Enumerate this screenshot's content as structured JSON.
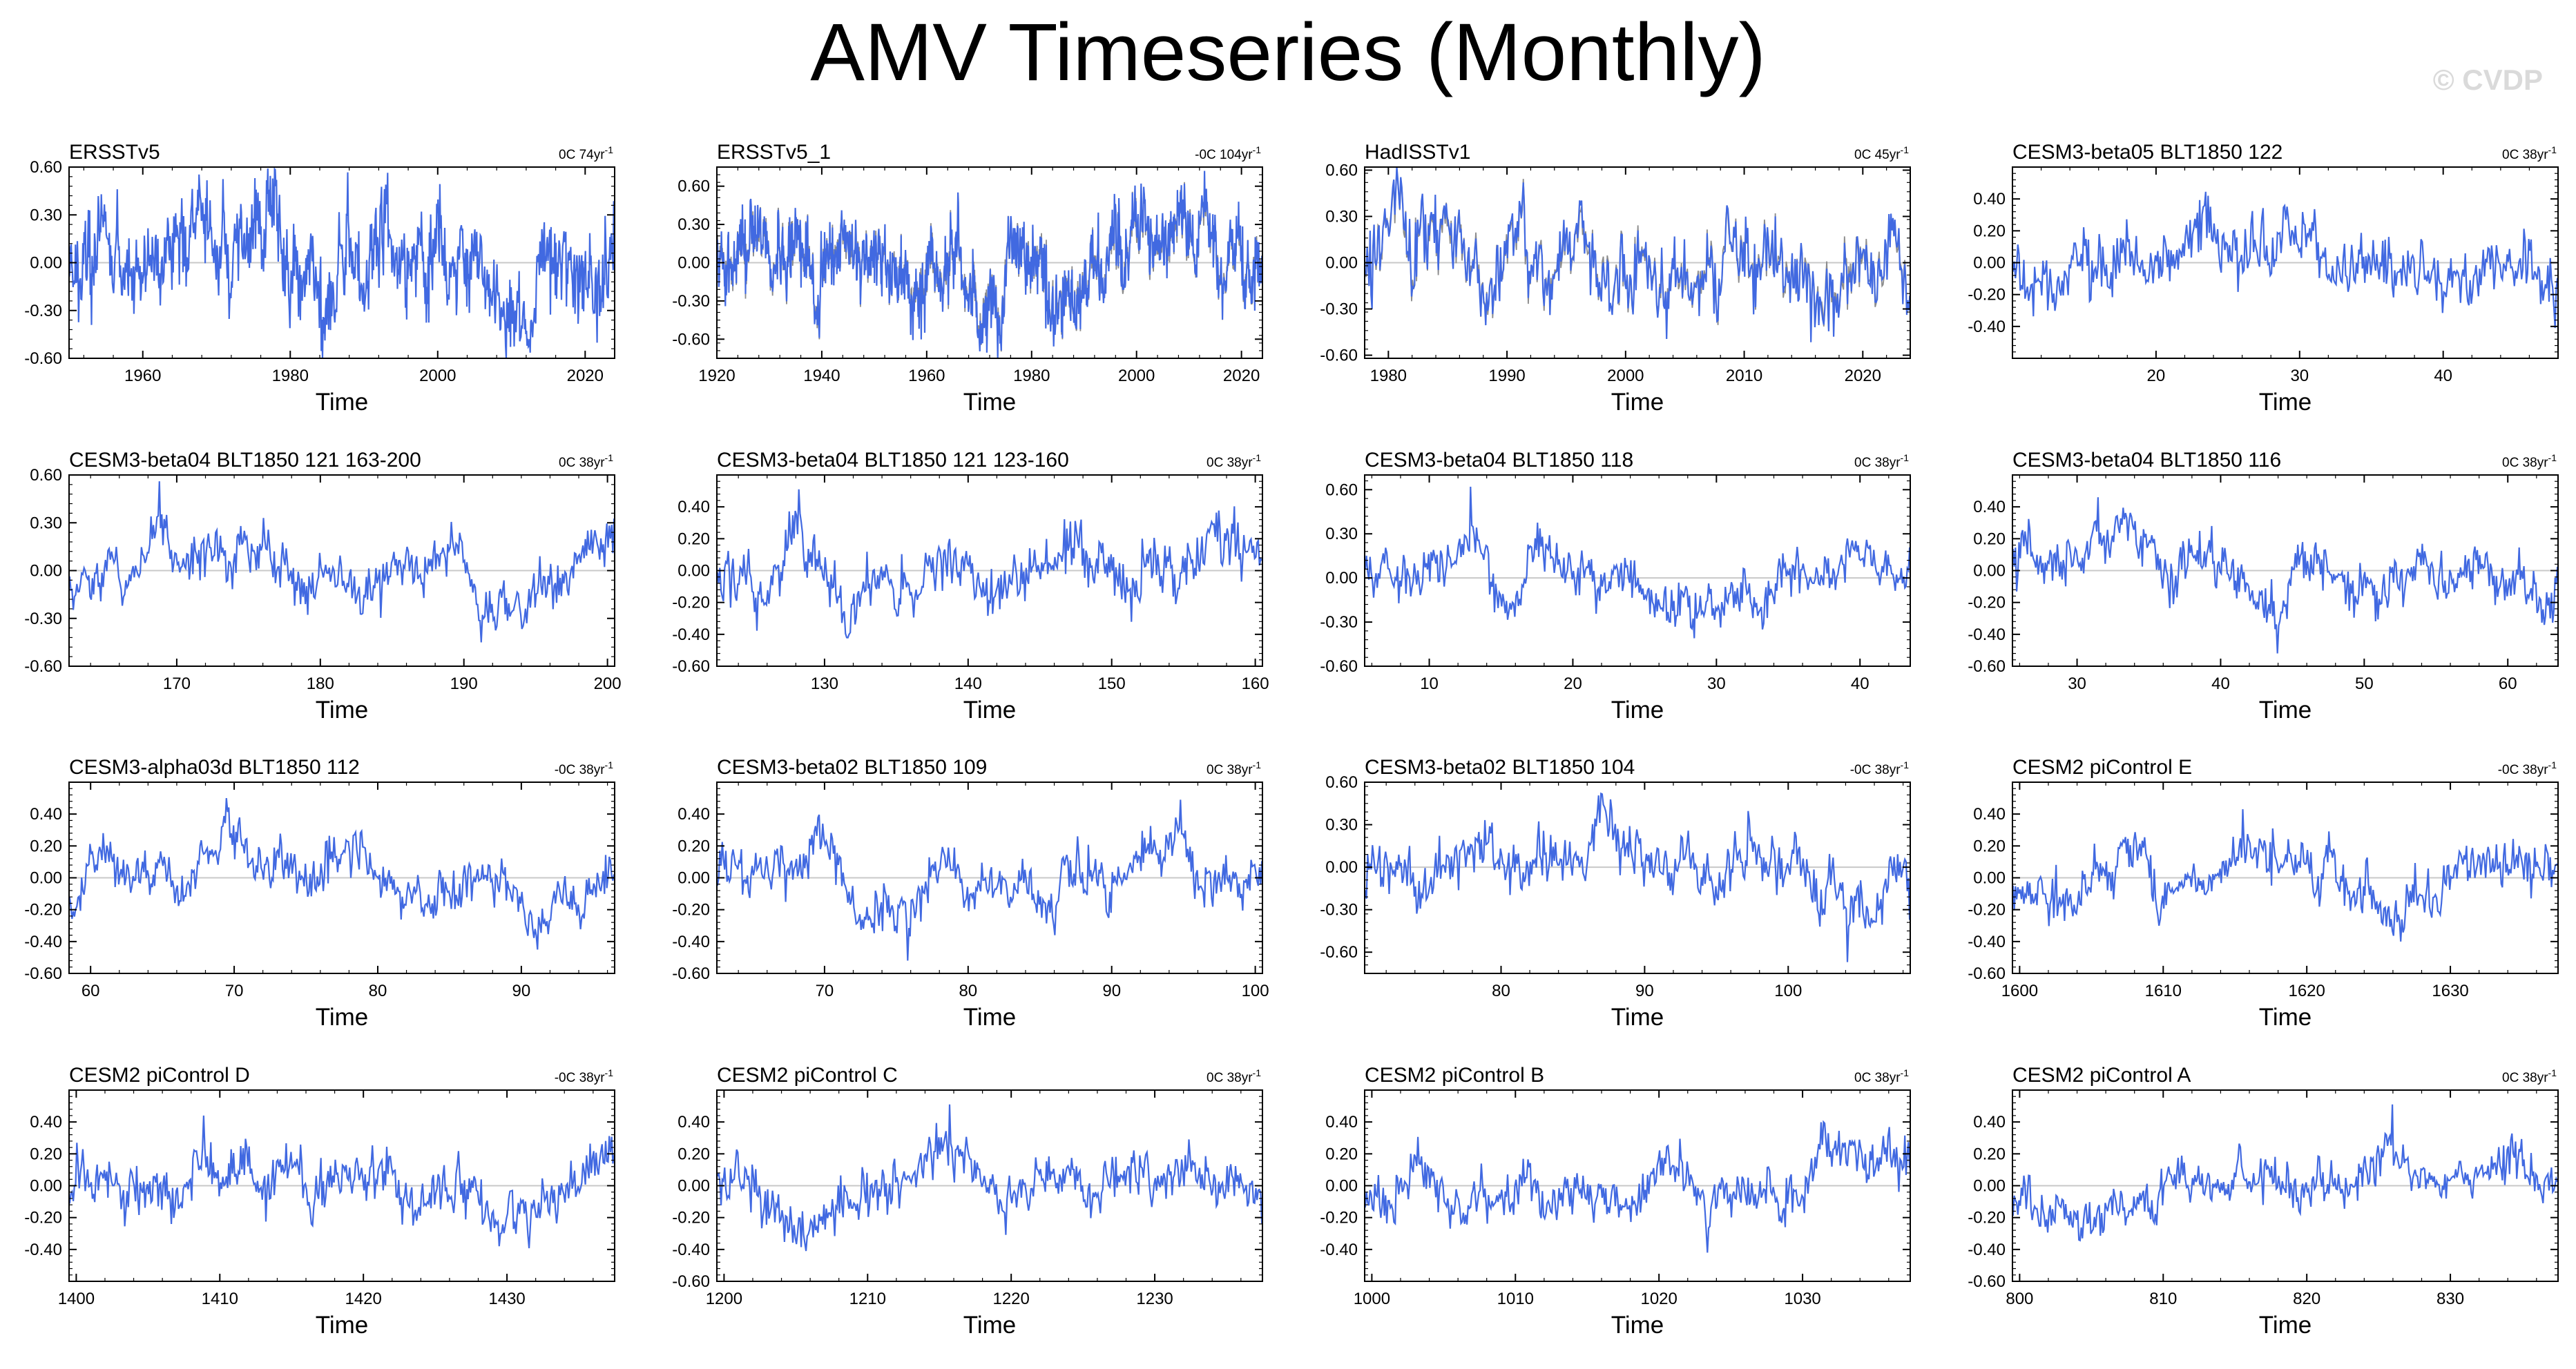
{
  "title": "AMV Timeseries (Monthly)",
  "watermark": "© CVDP",
  "colors": {
    "series": "#4169e1",
    "obs_overlay": "#8c8c8c",
    "zero_line": "#c8c8c8",
    "axis": "#000000"
  },
  "chart_data": [
    {
      "type": "line",
      "title": "ERSSTv5",
      "trend": "0C 74yr",
      "trend_sup": "-1",
      "x_range": [
        1950,
        2024
      ],
      "y_range": [
        -0.6,
        0.6
      ],
      "xticks": [
        1960,
        1980,
        2000,
        2020
      ],
      "yticks": [
        -0.6,
        -0.3,
        0,
        0.3,
        0.6
      ],
      "ytick_labels": [
        "-0.60",
        "-0.30",
        "0.00",
        "0.30",
        "0.60"
      ],
      "xlabel": "Time",
      "amplitude": 0.22,
      "extremes": [
        0.52,
        -0.52
      ],
      "seed": 11
    },
    {
      "type": "line",
      "title": "ERSSTv5_1",
      "trend": "-0C 104yr",
      "trend_sup": "-1",
      "x_range": [
        1920,
        2024
      ],
      "y_range": [
        -0.75,
        0.75
      ],
      "xticks": [
        1920,
        1940,
        1960,
        1980,
        2000,
        2020
      ],
      "yticks": [
        -0.6,
        -0.3,
        0,
        0.3,
        0.6
      ],
      "ytick_labels": [
        "-0.60",
        "-0.30",
        "0.00",
        "0.30",
        "0.60"
      ],
      "xlabel": "Time",
      "amplitude": 0.25,
      "extremes": [
        0.72,
        -0.62
      ],
      "seed": 23,
      "overlay": true
    },
    {
      "type": "line",
      "title": "HadISSTv1",
      "trend": "0C 45yr",
      "trend_sup": "-1",
      "x_range": [
        1978,
        2024
      ],
      "y_range": [
        -0.62,
        0.62
      ],
      "xticks": [
        1980,
        1990,
        2000,
        2010,
        2020
      ],
      "yticks": [
        -0.6,
        -0.3,
        0,
        0.3,
        0.6
      ],
      "ytick_labels": [
        "-0.60",
        "-0.30",
        "0.00",
        "0.30",
        "0.60"
      ],
      "xlabel": "Time",
      "amplitude": 0.2,
      "extremes": [
        0.7,
        -0.48
      ],
      "seed": 37,
      "overlay": true
    },
    {
      "type": "line",
      "title": "CESM3-beta05 BLT1850 122",
      "trend": "0C 38yr",
      "trend_sup": "-1",
      "x_range": [
        10,
        48
      ],
      "y_range": [
        -0.6,
        0.6
      ],
      "xticks": [
        20,
        30,
        40
      ],
      "yticks": [
        -0.4,
        -0.2,
        0,
        0.2,
        0.4
      ],
      "ytick_labels": [
        "-0.40",
        "-0.20",
        "0.00",
        "0.20",
        "0.40"
      ],
      "xlabel": "Time",
      "amplitude": 0.14,
      "extremes": [
        0.42,
        -0.41
      ],
      "seed": 41
    },
    {
      "type": "line",
      "title": "CESM3-beta04 BLT1850 121 163-200",
      "trend": "0C 38yr",
      "trend_sup": "-1",
      "x_range": [
        162.5,
        200.5
      ],
      "y_range": [
        -0.6,
        0.6
      ],
      "xticks": [
        170,
        180,
        190,
        200
      ],
      "yticks": [
        -0.6,
        -0.3,
        0,
        0.3,
        0.6
      ],
      "ytick_labels": [
        "-0.60",
        "-0.30",
        "0.00",
        "0.30",
        "0.60"
      ],
      "xlabel": "Time",
      "amplitude": 0.15,
      "extremes": [
        0.56,
        -0.45
      ],
      "seed": 53
    },
    {
      "type": "line",
      "title": "CESM3-beta04 BLT1850 121 123-160",
      "trend": "0C 38yr",
      "trend_sup": "-1",
      "x_range": [
        122.5,
        160.5
      ],
      "y_range": [
        -0.6,
        0.6
      ],
      "xticks": [
        130,
        140,
        150,
        160
      ],
      "yticks": [
        -0.6,
        -0.4,
        -0.2,
        0,
        0.2,
        0.4
      ],
      "ytick_labels": [
        "-0.60",
        "-0.40",
        "-0.20",
        "0.00",
        "0.20",
        "0.40"
      ],
      "xlabel": "Time",
      "amplitude": 0.15,
      "extremes": [
        0.51,
        -0.42
      ],
      "seed": 67
    },
    {
      "type": "line",
      "title": "CESM3-beta04 BLT1850 118",
      "trend": "0C 38yr",
      "trend_sup": "-1",
      "x_range": [
        5.5,
        43.5
      ],
      "y_range": [
        -0.6,
        0.7
      ],
      "xticks": [
        10,
        20,
        30,
        40
      ],
      "yticks": [
        -0.6,
        -0.3,
        0,
        0.3,
        0.6
      ],
      "ytick_labels": [
        "-0.60",
        "-0.30",
        "0.00",
        "0.30",
        "0.60"
      ],
      "xlabel": "Time",
      "amplitude": 0.15,
      "extremes": [
        0.62,
        -0.41
      ],
      "seed": 71
    },
    {
      "type": "line",
      "title": "CESM3-beta04 BLT1850 116",
      "trend": "0C 38yr",
      "trend_sup": "-1",
      "x_range": [
        25.5,
        63.5
      ],
      "y_range": [
        -0.6,
        0.6
      ],
      "xticks": [
        30,
        40,
        50,
        60
      ],
      "yticks": [
        -0.6,
        -0.4,
        -0.2,
        0,
        0.2,
        0.4
      ],
      "ytick_labels": [
        "-0.60",
        "-0.40",
        "-0.20",
        "0.00",
        "0.20",
        "0.40"
      ],
      "xlabel": "Time",
      "amplitude": 0.15,
      "extremes": [
        0.46,
        -0.52
      ],
      "seed": 83
    },
    {
      "type": "line",
      "title": "CESM3-alpha03d BLT1850 112",
      "trend": "-0C 38yr",
      "trend_sup": "-1",
      "x_range": [
        58.5,
        96.5
      ],
      "y_range": [
        -0.6,
        0.6
      ],
      "xticks": [
        60,
        70,
        80,
        90
      ],
      "yticks": [
        -0.6,
        -0.4,
        -0.2,
        0,
        0.2,
        0.4
      ],
      "ytick_labels": [
        "-0.60",
        "-0.40",
        "-0.20",
        "0.00",
        "0.20",
        "0.40"
      ],
      "xlabel": "Time",
      "amplitude": 0.15,
      "extremes": [
        0.5,
        -0.45
      ],
      "seed": 97
    },
    {
      "type": "line",
      "title": "CESM3-beta02 BLT1850 109",
      "trend": "0C 38yr",
      "trend_sup": "-1",
      "x_range": [
        62.5,
        100.5
      ],
      "y_range": [
        -0.6,
        0.6
      ],
      "xticks": [
        70,
        80,
        90,
        100
      ],
      "yticks": [
        -0.6,
        -0.4,
        -0.2,
        0,
        0.2,
        0.4
      ],
      "ytick_labels": [
        "-0.60",
        "-0.40",
        "-0.20",
        "0.00",
        "0.20",
        "0.40"
      ],
      "xlabel": "Time",
      "amplitude": 0.15,
      "extremes": [
        0.49,
        -0.52
      ],
      "seed": 103
    },
    {
      "type": "line",
      "title": "CESM3-beta02 BLT1850 104",
      "trend": "-0C 38yr",
      "trend_sup": "-1",
      "x_range": [
        70.5,
        108.5
      ],
      "y_range": [
        -0.75,
        0.6
      ],
      "xticks": [
        80,
        90,
        100
      ],
      "yticks": [
        -0.6,
        -0.3,
        0,
        0.3,
        0.6
      ],
      "ytick_labels": [
        "-0.60",
        "-0.30",
        "0.00",
        "0.30",
        "0.60"
      ],
      "xlabel": "Time",
      "amplitude": 0.17,
      "extremes": [
        0.52,
        -0.67
      ],
      "seed": 113
    },
    {
      "type": "line",
      "title": "CESM2 piControl E",
      "trend": "-0C 38yr",
      "trend_sup": "-1",
      "x_range": [
        1599.5,
        1637.5
      ],
      "y_range": [
        -0.6,
        0.6
      ],
      "xticks": [
        1600,
        1610,
        1620,
        1630
      ],
      "yticks": [
        -0.6,
        -0.4,
        -0.2,
        0,
        0.2,
        0.4
      ],
      "ytick_labels": [
        "-0.60",
        "-0.40",
        "-0.20",
        "0.00",
        "0.20",
        "0.40"
      ],
      "xlabel": "Time",
      "amplitude": 0.14,
      "extremes": [
        0.43,
        -0.4
      ],
      "seed": 127
    },
    {
      "type": "line",
      "title": "CESM2 piControl D",
      "trend": "-0C 38yr",
      "trend_sup": "-1",
      "x_range": [
        1399.5,
        1437.5
      ],
      "y_range": [
        -0.6,
        0.6
      ],
      "xticks": [
        1400,
        1410,
        1420,
        1430
      ],
      "yticks": [
        -0.4,
        -0.2,
        0,
        0.2,
        0.4
      ],
      "ytick_labels": [
        "-0.40",
        "-0.20",
        "0.00",
        "0.20",
        "0.40"
      ],
      "xlabel": "Time",
      "amplitude": 0.13,
      "extremes": [
        0.44,
        -0.38
      ],
      "seed": 131
    },
    {
      "type": "line",
      "title": "CESM2 piControl C",
      "trend": "0C 38yr",
      "trend_sup": "-1",
      "x_range": [
        1199.5,
        1237.5
      ],
      "y_range": [
        -0.6,
        0.6
      ],
      "xticks": [
        1200,
        1210,
        1220,
        1230
      ],
      "yticks": [
        -0.6,
        -0.4,
        -0.2,
        0,
        0.2,
        0.4
      ],
      "ytick_labels": [
        "-0.60",
        "-0.40",
        "-0.20",
        "0.00",
        "0.20",
        "0.40"
      ],
      "xlabel": "Time",
      "amplitude": 0.14,
      "extremes": [
        0.51,
        -0.41
      ],
      "seed": 139
    },
    {
      "type": "line",
      "title": "CESM2 piControl B",
      "trend": "0C 38yr",
      "trend_sup": "-1",
      "x_range": [
        999.5,
        1037.5
      ],
      "y_range": [
        -0.6,
        0.6
      ],
      "xticks": [
        1000,
        1010,
        1020,
        1030
      ],
      "yticks": [
        -0.4,
        -0.2,
        0,
        0.2,
        0.4
      ],
      "ytick_labels": [
        "-0.40",
        "-0.20",
        "0.00",
        "0.20",
        "0.40"
      ],
      "xlabel": "Time",
      "amplitude": 0.14,
      "extremes": [
        0.4,
        -0.42
      ],
      "seed": 149
    },
    {
      "type": "line",
      "title": "CESM2 piControl A",
      "trend": "0C 38yr",
      "trend_sup": "-1",
      "x_range": [
        799.5,
        837.5
      ],
      "y_range": [
        -0.6,
        0.6
      ],
      "xticks": [
        800,
        810,
        820,
        830
      ],
      "yticks": [
        -0.6,
        -0.4,
        -0.2,
        0,
        0.2,
        0.4
      ],
      "ytick_labels": [
        "-0.60",
        "-0.40",
        "-0.20",
        "0.00",
        "0.20",
        "0.40"
      ],
      "xlabel": "Time",
      "amplitude": 0.13,
      "extremes": [
        0.51,
        -0.34
      ],
      "seed": 157
    }
  ]
}
